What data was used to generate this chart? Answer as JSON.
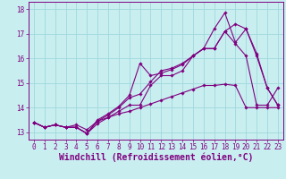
{
  "title": "",
  "xlabel": "Windchill (Refroidissement éolien,°C)",
  "ylabel": "",
  "bg_color": "#c8eef0",
  "grid_color": "#a0d8dc",
  "line_color": "#800080",
  "x_ticks": [
    0,
    1,
    2,
    3,
    4,
    5,
    6,
    7,
    8,
    9,
    10,
    11,
    12,
    13,
    14,
    15,
    16,
    17,
    18,
    19,
    20,
    21,
    22,
    23
  ],
  "y_ticks": [
    13,
    14,
    15,
    16,
    17,
    18
  ],
  "xlim": [
    -0.5,
    23.5
  ],
  "ylim": [
    12.7,
    18.3
  ],
  "lines": [
    {
      "x": [
        0,
        1,
        2,
        3,
        4,
        5,
        6,
        7,
        8,
        9,
        10,
        11,
        12,
        13,
        14,
        15,
        16,
        17,
        18,
        19,
        20,
        21,
        22,
        23
      ],
      "y": [
        13.4,
        13.2,
        13.3,
        13.2,
        13.2,
        12.95,
        13.35,
        13.6,
        13.85,
        14.1,
        14.1,
        14.9,
        15.3,
        15.3,
        15.5,
        16.1,
        16.4,
        16.4,
        17.1,
        16.6,
        16.1,
        14.1,
        14.1,
        14.8
      ]
    },
    {
      "x": [
        0,
        1,
        2,
        3,
        4,
        5,
        6,
        7,
        8,
        9,
        10,
        11,
        12,
        13,
        14,
        15,
        16,
        17,
        18,
        19,
        20,
        21,
        22,
        23
      ],
      "y": [
        13.4,
        13.2,
        13.3,
        13.2,
        13.2,
        12.95,
        13.45,
        13.7,
        14.0,
        14.4,
        14.55,
        15.05,
        15.5,
        15.6,
        15.8,
        16.1,
        16.4,
        16.4,
        17.1,
        17.4,
        17.2,
        16.2,
        14.8,
        14.1
      ]
    },
    {
      "x": [
        0,
        1,
        2,
        3,
        4,
        5,
        6,
        7,
        8,
        9,
        10,
        11,
        12,
        13,
        14,
        15,
        16,
        17,
        18,
        19,
        20,
        21,
        22,
        23
      ],
      "y": [
        13.4,
        13.2,
        13.3,
        13.2,
        13.2,
        12.95,
        13.5,
        13.75,
        14.05,
        14.5,
        15.8,
        15.3,
        15.4,
        15.55,
        15.75,
        16.1,
        16.4,
        17.2,
        17.85,
        16.65,
        17.2,
        16.1,
        14.8,
        14.1
      ]
    },
    {
      "x": [
        0,
        1,
        2,
        3,
        4,
        5,
        6,
        7,
        8,
        9,
        10,
        11,
        12,
        13,
        14,
        15,
        16,
        17,
        18,
        19,
        20,
        21,
        22,
        23
      ],
      "y": [
        13.4,
        13.2,
        13.3,
        13.2,
        13.3,
        13.1,
        13.45,
        13.6,
        13.75,
        13.85,
        14.0,
        14.15,
        14.3,
        14.45,
        14.6,
        14.75,
        14.9,
        14.9,
        14.95,
        14.9,
        14.0,
        14.0,
        14.0,
        14.0
      ]
    }
  ],
  "font_color": "#800080",
  "tick_fontsize": 5.5,
  "xlabel_fontsize": 7.0
}
